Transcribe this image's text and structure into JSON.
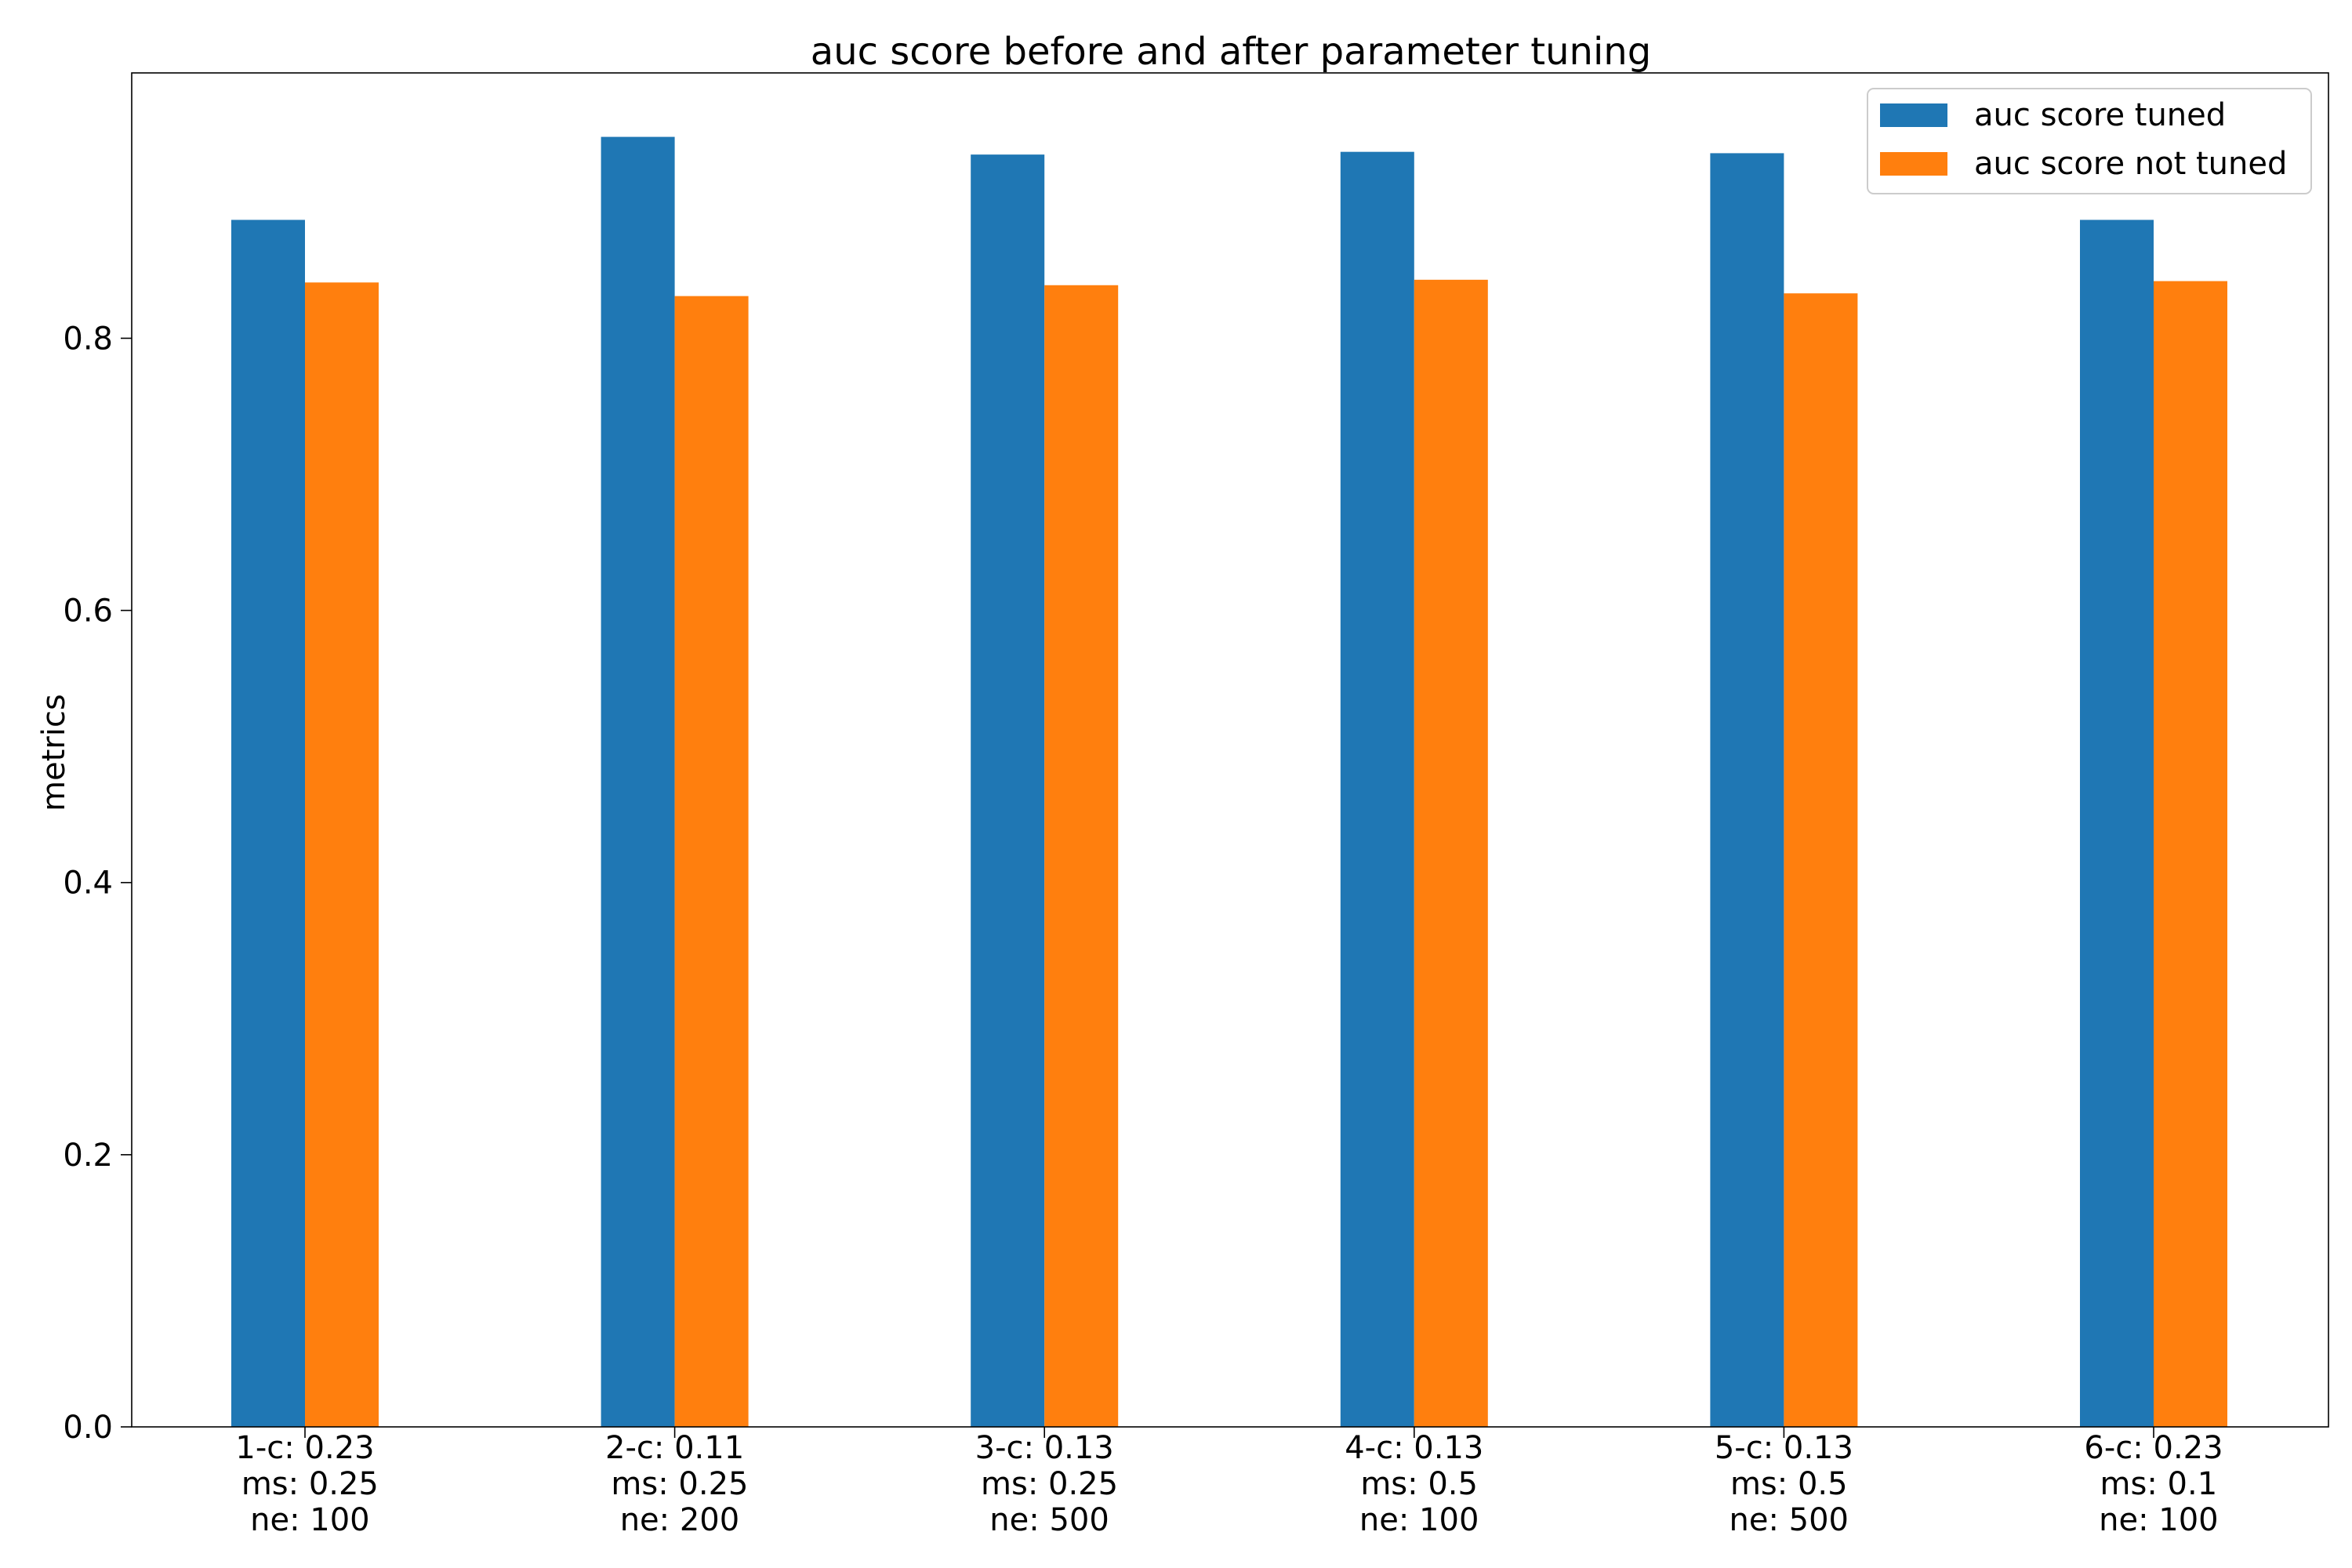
{
  "chart_data": {
    "type": "bar",
    "title": "auc score before and after parameter tuning",
    "xlabel": "",
    "ylabel": "metrics",
    "ylim": [
      0,
      0.995
    ],
    "yticks": [
      "0.0",
      "0.2",
      "0.4",
      "0.6",
      "0.8"
    ],
    "categories": [
      [
        "1-c: 0.23",
        " ms: 0.25",
        " ne: 100"
      ],
      [
        "2-c: 0.11",
        " ms: 0.25",
        " ne: 200"
      ],
      [
        "3-c: 0.13",
        " ms: 0.25",
        " ne: 500"
      ],
      [
        "4-c: 0.13",
        " ms: 0.5",
        " ne: 100"
      ],
      [
        "5-c: 0.13",
        " ms: 0.5",
        " ne: 500"
      ],
      [
        "6-c: 0.23",
        " ms: 0.1",
        " ne: 100"
      ]
    ],
    "series": [
      {
        "name": "auc score tuned",
        "color": "#1f77b4",
        "values": [
          0.887,
          0.948,
          0.935,
          0.937,
          0.936,
          0.887
        ]
      },
      {
        "name": "auc score not tuned",
        "color": "#ff7f0e",
        "values": [
          0.841,
          0.831,
          0.839,
          0.843,
          0.833,
          0.842
        ]
      }
    ],
    "legend_position": "top-right",
    "grid": false
  }
}
